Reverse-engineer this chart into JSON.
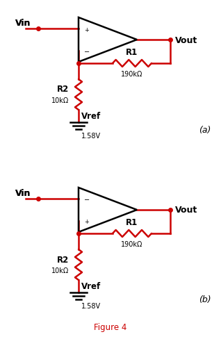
{
  "fig_width": 3.18,
  "fig_height": 4.89,
  "dpi": 100,
  "bg_color": "#ffffff",
  "line_color": "#cc0000",
  "black": "#000000",
  "figure4_color": "#cc0000",
  "circuit_a": {
    "label": "(a)",
    "vin_label": "Vin",
    "vout_label": "Vout",
    "r1_label": "R1",
    "r1_value": "190kΩ",
    "r2_label": "R2",
    "r2_value": "10kΩ",
    "vref_label": "Vref",
    "vref_value": "1.58V",
    "plus_top": true
  },
  "circuit_b": {
    "label": "(b)",
    "vin_label": "Vin",
    "vout_label": "Vout",
    "r1_label": "R1",
    "r1_value": "190kΩ",
    "r2_label": "R2",
    "r2_value": "10kΩ",
    "vref_label": "Vref",
    "vref_value": "1.58V",
    "plus_top": false
  },
  "figure_label": "Figure 4"
}
